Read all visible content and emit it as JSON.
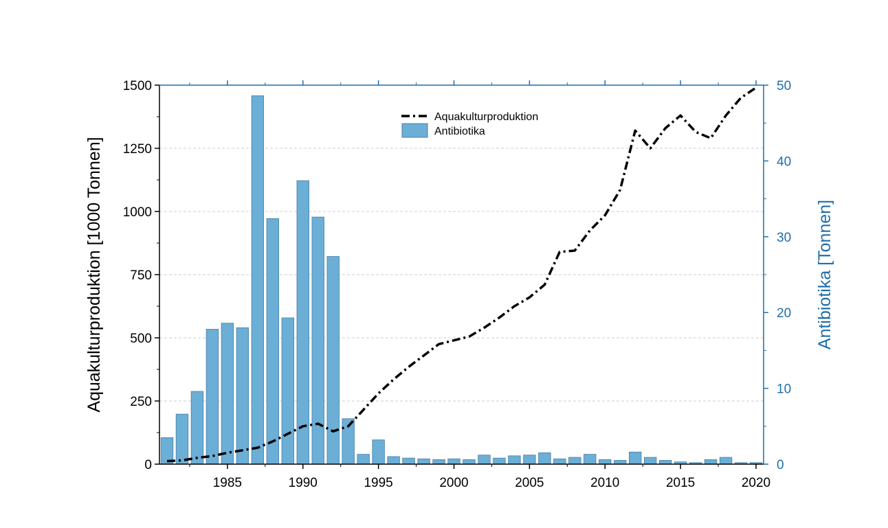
{
  "chart_data": {
    "type": "bar+line",
    "x": [
      1981,
      1982,
      1983,
      1984,
      1985,
      1986,
      1987,
      1988,
      1989,
      1990,
      1991,
      1992,
      1993,
      1994,
      1995,
      1996,
      1997,
      1998,
      1999,
      2000,
      2001,
      2002,
      2003,
      2004,
      2005,
      2006,
      2007,
      2008,
      2009,
      2010,
      2011,
      2012,
      2013,
      2014,
      2015,
      2016,
      2017,
      2018,
      2019,
      2020
    ],
    "xlim": [
      1980.5,
      2020.5
    ],
    "xticks": [
      "1985",
      "1990",
      "1995",
      "2000",
      "2005",
      "2010",
      "2015",
      "2020"
    ],
    "yleft": {
      "label": "Aquakulturproduktion [1000 Tonnen]",
      "ylim": [
        0,
        1500
      ],
      "ticks": [
        "0",
        "250",
        "500",
        "750",
        "1000",
        "1250",
        "1500"
      ]
    },
    "yright": {
      "label": "Antibiotika [Tonnen]",
      "ylim": [
        0,
        50
      ],
      "ticks": [
        "0",
        "10",
        "20",
        "30",
        "40",
        "50"
      ],
      "color": "#1f6eab"
    },
    "series": [
      {
        "name": "Antibiotika",
        "kind": "bar",
        "axis": "right",
        "color": "#6baed6",
        "values": [
          3.5,
          6.6,
          9.6,
          17.8,
          18.6,
          18.0,
          48.6,
          32.4,
          19.3,
          37.4,
          32.6,
          27.4,
          6.0,
          1.3,
          3.2,
          1.0,
          0.8,
          0.7,
          0.6,
          0.7,
          0.6,
          1.2,
          0.8,
          1.1,
          1.2,
          1.5,
          0.7,
          0.9,
          1.3,
          0.6,
          0.5,
          1.6,
          0.9,
          0.5,
          0.3,
          0.2,
          0.6,
          0.9,
          0.2,
          0.2
        ]
      },
      {
        "name": "Aquakulturproduktion",
        "kind": "line",
        "axis": "left",
        "color": "#000000",
        "style": "dash-dot",
        "values": [
          12,
          15,
          25,
          32,
          45,
          55,
          65,
          90,
          120,
          150,
          160,
          130,
          150,
          215,
          280,
          335,
          385,
          430,
          475,
          490,
          505,
          540,
          580,
          625,
          660,
          710,
          840,
          845,
          925,
          985,
          1085,
          1320,
          1250,
          1330,
          1380,
          1315,
          1290,
          1380,
          1450,
          1490
        ]
      }
    ],
    "legend": {
      "position": "top-center"
    },
    "grid": {
      "y": true,
      "style": "dashed",
      "color": "#cccccc"
    }
  }
}
